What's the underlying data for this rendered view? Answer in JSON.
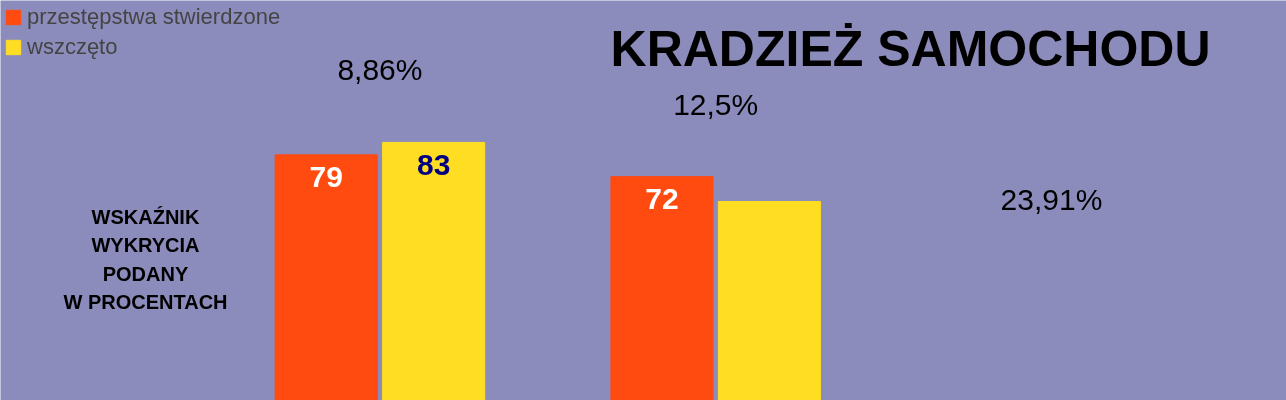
{
  "chart_data": {
    "type": "bar",
    "title": "KRADZIEŻ SAMOCHODU",
    "categories": [
      null,
      null
    ],
    "series": [
      {
        "name": "przestępstwa stwierdzone",
        "color": "#ff4a10",
        "values": [
          79,
          72
        ],
        "value_labels": [
          "79",
          "72"
        ]
      },
      {
        "name": "wszczęto",
        "color": "#ffdd22",
        "values": [
          83,
          64
        ],
        "value_labels": [
          "83",
          null
        ]
      }
    ],
    "annotations": [
      "WSKAŹNIK\nWYKRYCIA\nPODANY\nW PROCENTACH",
      "8,86%",
      "12,5%",
      "23,91%"
    ],
    "legend": "top left",
    "grid": false
  }
}
